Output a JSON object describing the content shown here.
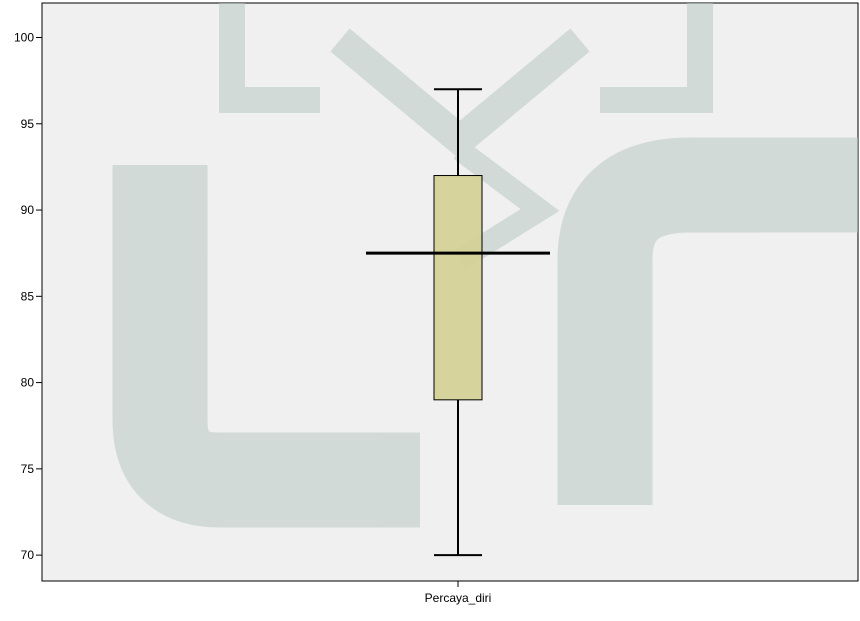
{
  "chart_data": {
    "type": "boxplot",
    "categories": [
      "Percaya_diri"
    ],
    "series": [
      {
        "values": {
          "min": 70,
          "q1": 79,
          "median": 87.5,
          "q3": 92,
          "max": 97
        }
      }
    ],
    "yticks": [
      70,
      75,
      80,
      85,
      90,
      95,
      100
    ],
    "ylim": [
      68.5,
      102
    ],
    "xlabel": "",
    "ylabel": "",
    "title": "",
    "grid": false,
    "legend": "none"
  },
  "colors": {
    "plot_background": "#f0f0f0",
    "box_fill": "#d4cf94",
    "box_stroke": "#000000",
    "watermark": "#b9c9c2"
  }
}
